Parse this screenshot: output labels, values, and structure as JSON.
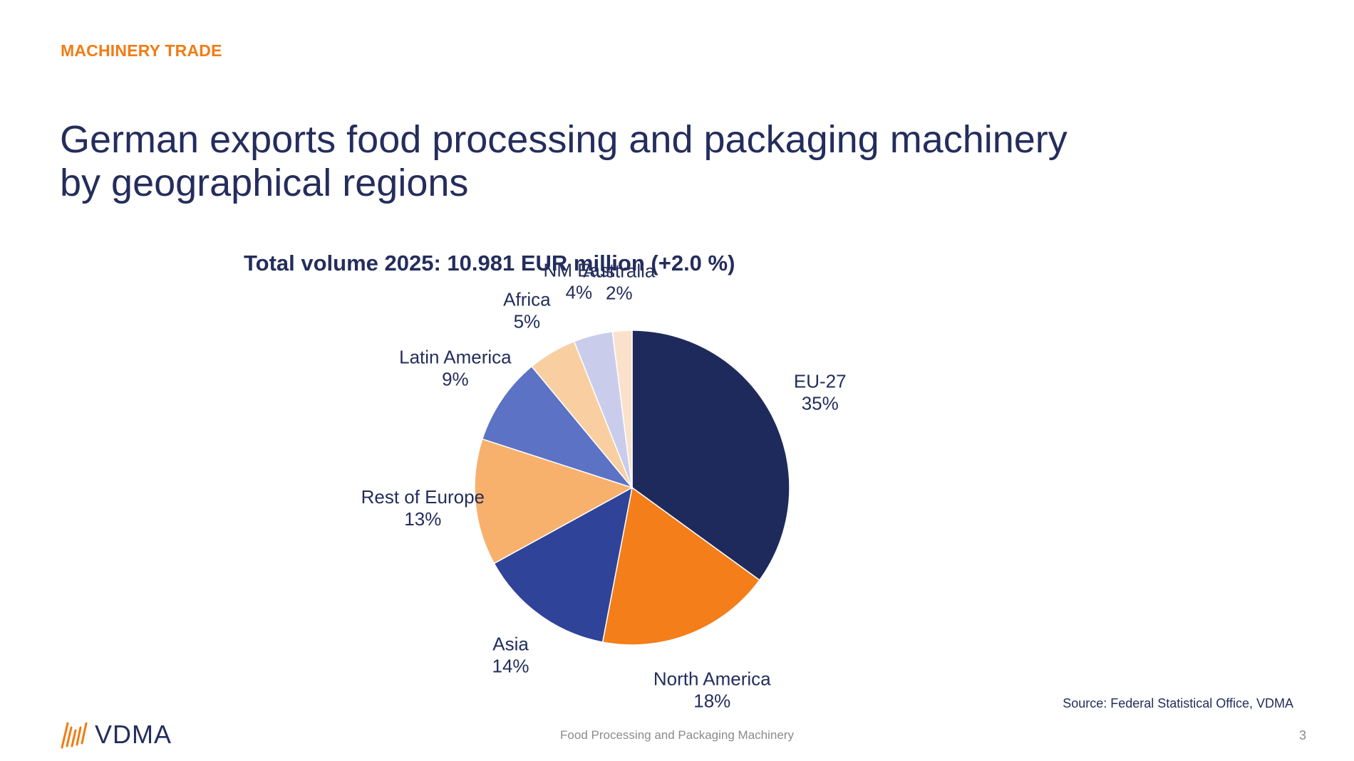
{
  "header": {
    "section_label": "MACHINERY TRADE",
    "title": "German exports food processing and packaging machinery\nby geographical regions"
  },
  "chart_data": {
    "type": "pie",
    "title": "Total volume 2025: 10.981 EUR million (+2.0 %)",
    "slices": [
      {
        "label": "EU-27",
        "value": 35,
        "value_label": "35%",
        "color": "#1f2a5c"
      },
      {
        "label": "North America",
        "value": 18,
        "value_label": "18%",
        "color": "#f47e1a"
      },
      {
        "label": "Asia",
        "value": 14,
        "value_label": "14%",
        "color": "#2f4399"
      },
      {
        "label": "Rest of Europe",
        "value": 13,
        "value_label": "13%",
        "color": "#f8b06d"
      },
      {
        "label": "Latin America",
        "value": 9,
        "value_label": "9%",
        "color": "#5c72c4"
      },
      {
        "label": "Africa",
        "value": 5,
        "value_label": "5%",
        "color": "#f9cfa2"
      },
      {
        "label": "NM East",
        "value": 4,
        "value_label": "4%",
        "color": "#c9cdeb"
      },
      {
        "label": "Australia",
        "value": 2,
        "value_label": "2%",
        "color": "#fbe1cc"
      }
    ],
    "start": "12 o'clock",
    "direction": "clockwise",
    "legend": "none"
  },
  "footer": {
    "source": "Source: Federal Statistical Office, VDMA",
    "center_text": "Food Processing and Packaging Machinery",
    "page_number": "3",
    "logo_text": "VDMA"
  }
}
